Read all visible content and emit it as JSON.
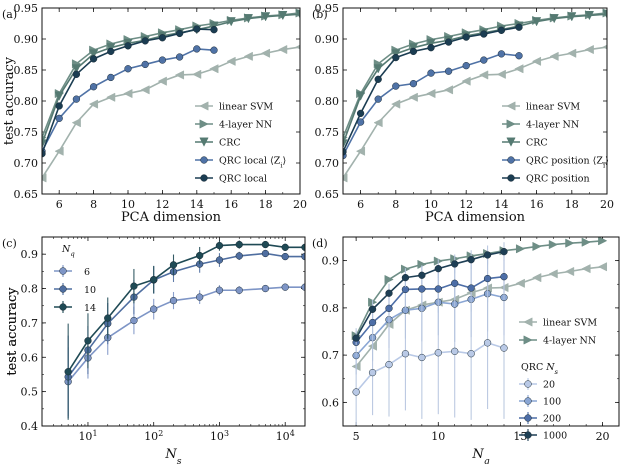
{
  "colors": {
    "svm": "#a2b2ad",
    "nn": "#6e8e86",
    "crc": "#557a72",
    "local": "#4f72a6",
    "qrc": "#1b3d52",
    "nq6": "#7e95c6",
    "nq10": "#4f6ea0",
    "nq14": "#1f4a55",
    "ns20": "#b9c9e6",
    "ns100": "#8aa6d4",
    "ns200": "#4d6ea7",
    "ns1000": "#1e3f55",
    "errbar": "#b5c4de"
  },
  "chart_data": [
    {
      "panel": "(a)",
      "type": "line",
      "xlabel": "PCA dimension",
      "ylabel": "test accuracy",
      "xlim": [
        5,
        20
      ],
      "ylim": [
        0.65,
        0.95
      ],
      "xticks": [
        6,
        8,
        10,
        12,
        14,
        16,
        18,
        20
      ],
      "yticks": [
        0.65,
        0.7,
        0.75,
        0.8,
        0.85,
        0.9,
        0.95
      ],
      "legend_pos": "bottom-right",
      "series": [
        {
          "name": "linear SVM",
          "key": "svm",
          "marker": "tri-left",
          "x": [
            5,
            6,
            7,
            8,
            9,
            10,
            11,
            12,
            13,
            14,
            15,
            16,
            17,
            18,
            19,
            20
          ],
          "y": [
            0.676,
            0.719,
            0.765,
            0.795,
            0.806,
            0.812,
            0.818,
            0.832,
            0.842,
            0.843,
            0.852,
            0.864,
            0.872,
            0.877,
            0.883,
            0.887
          ]
        },
        {
          "name": "4-layer NN",
          "key": "nn",
          "marker": "tri-right",
          "x": [
            5,
            6,
            7,
            8,
            9,
            10,
            11,
            12,
            13,
            14,
            15,
            16,
            17,
            18,
            19,
            20
          ],
          "y": [
            0.741,
            0.812,
            0.86,
            0.882,
            0.892,
            0.899,
            0.904,
            0.91,
            0.915,
            0.921,
            0.925,
            0.93,
            0.934,
            0.937,
            0.939,
            0.942
          ]
        },
        {
          "name": "CRC",
          "key": "crc",
          "marker": "tri-down",
          "x": [
            5,
            6,
            7,
            8,
            9,
            10,
            11,
            12,
            13,
            14,
            15,
            16,
            17,
            18,
            19,
            20
          ],
          "y": [
            0.731,
            0.808,
            0.852,
            0.876,
            0.886,
            0.893,
            0.898,
            0.905,
            0.91,
            0.915,
            0.921,
            0.928,
            0.933,
            0.936,
            0.938,
            0.94
          ]
        },
        {
          "name": "QRC local ⟨Z_i⟩",
          "key": "local",
          "marker": "circle",
          "x": [
            5,
            6,
            7,
            8,
            9,
            10,
            11,
            12,
            13,
            14,
            15
          ],
          "y": [
            0.719,
            0.772,
            0.803,
            0.823,
            0.838,
            0.852,
            0.859,
            0.866,
            0.871,
            0.884,
            0.882
          ]
        },
        {
          "name": "QRC local",
          "key": "qrc",
          "marker": "circle",
          "x": [
            5,
            6,
            7,
            8,
            9,
            10,
            11,
            12,
            13,
            14,
            15
          ],
          "y": [
            0.715,
            0.792,
            0.843,
            0.868,
            0.88,
            0.889,
            0.897,
            0.902,
            0.909,
            0.916,
            0.915
          ]
        }
      ]
    },
    {
      "panel": "(b)",
      "type": "line",
      "xlabel": "PCA dimension",
      "ylabel": "",
      "xlim": [
        5,
        20
      ],
      "ylim": [
        0.65,
        0.95
      ],
      "xticks": [
        6,
        8,
        10,
        12,
        14,
        16,
        18,
        20
      ],
      "yticks": [
        0.65,
        0.7,
        0.75,
        0.8,
        0.85,
        0.9,
        0.95
      ],
      "legend_pos": "bottom-right",
      "series": [
        {
          "name": "linear SVM",
          "key": "svm",
          "marker": "tri-left",
          "x": [
            5,
            6,
            7,
            8,
            9,
            10,
            11,
            12,
            13,
            14,
            15,
            16,
            17,
            18,
            19,
            20
          ],
          "y": [
            0.676,
            0.719,
            0.765,
            0.795,
            0.806,
            0.812,
            0.818,
            0.832,
            0.842,
            0.843,
            0.852,
            0.864,
            0.872,
            0.877,
            0.883,
            0.887
          ]
        },
        {
          "name": "4-layer NN",
          "key": "nn",
          "marker": "tri-right",
          "x": [
            5,
            6,
            7,
            8,
            9,
            10,
            11,
            12,
            13,
            14,
            15,
            16,
            17,
            18,
            19,
            20
          ],
          "y": [
            0.741,
            0.812,
            0.86,
            0.882,
            0.892,
            0.899,
            0.904,
            0.91,
            0.915,
            0.921,
            0.925,
            0.93,
            0.934,
            0.937,
            0.939,
            0.942
          ]
        },
        {
          "name": "CRC",
          "key": "crc",
          "marker": "tri-down",
          "x": [
            5,
            6,
            7,
            8,
            9,
            10,
            11,
            12,
            13,
            14,
            15,
            16,
            17,
            18,
            19,
            20
          ],
          "y": [
            0.731,
            0.808,
            0.852,
            0.876,
            0.886,
            0.893,
            0.898,
            0.905,
            0.91,
            0.915,
            0.921,
            0.928,
            0.933,
            0.936,
            0.938,
            0.94
          ]
        },
        {
          "name": "QRC position ⟨Z_i⟩",
          "key": "local",
          "marker": "circle",
          "x": [
            5,
            6,
            7,
            8,
            9,
            10,
            11,
            12,
            13,
            14,
            15
          ],
          "y": [
            0.712,
            0.766,
            0.803,
            0.824,
            0.828,
            0.845,
            0.848,
            0.857,
            0.866,
            0.876,
            0.873
          ]
        },
        {
          "name": "QRC position",
          "key": "qrc",
          "marker": "circle",
          "x": [
            5,
            6,
            7,
            8,
            9,
            10,
            11,
            12,
            13,
            14,
            15
          ],
          "y": [
            0.718,
            0.78,
            0.835,
            0.87,
            0.88,
            0.886,
            0.895,
            0.903,
            0.908,
            0.914,
            0.919
          ]
        }
      ]
    },
    {
      "panel": "(c)",
      "type": "line",
      "xscale": "log",
      "xlabel": "N_s",
      "ylabel": "test accuracy",
      "xlim": [
        2,
        20000
      ],
      "ylim": [
        0.4,
        0.95
      ],
      "xticks": [
        10,
        100,
        1000,
        10000
      ],
      "xticklabels": [
        "10^1",
        "10^2",
        "10^3",
        "10^4"
      ],
      "yticks": [
        0.4,
        0.5,
        0.6,
        0.7,
        0.8,
        0.9
      ],
      "legend_title": "N_q",
      "legend_pos": "top-left",
      "series": [
        {
          "name": "6",
          "key": "nq6",
          "marker": "circle",
          "x": [
            5,
            10,
            20,
            50,
            100,
            200,
            500,
            1000,
            2000,
            5000,
            10000,
            20000
          ],
          "y": [
            0.529,
            0.598,
            0.657,
            0.707,
            0.74,
            0.765,
            0.775,
            0.795,
            0.795,
            0.8,
            0.804,
            0.804
          ],
          "err": [
            0.1,
            0.06,
            0.05,
            0.04,
            0.03,
            0.025,
            0.02,
            0.015,
            0.012,
            0.01,
            0.01,
            0
          ]
        },
        {
          "name": "10",
          "key": "nq10",
          "marker": "circle",
          "x": [
            5,
            10,
            20,
            50,
            100,
            200,
            500,
            1000,
            2000,
            5000,
            10000,
            20000
          ],
          "y": [
            0.543,
            0.621,
            0.698,
            0.775,
            0.825,
            0.849,
            0.871,
            0.883,
            0.895,
            0.902,
            0.893,
            0.893
          ],
          "err": [
            0.12,
            0.07,
            0.06,
            0.05,
            0.04,
            0.03,
            0.025,
            0.02,
            0.012,
            0.01,
            0.01,
            0
          ]
        },
        {
          "name": "14",
          "key": "nq14",
          "marker": "circle",
          "x": [
            5,
            10,
            20,
            50,
            100,
            200,
            500,
            1000,
            2000,
            5000,
            10000,
            20000
          ],
          "y": [
            0.558,
            0.648,
            0.714,
            0.807,
            0.826,
            0.869,
            0.896,
            0.925,
            0.928,
            0.928,
            0.92,
            0.92
          ],
          "err": [
            0.14,
            0.08,
            0.06,
            0.05,
            0.04,
            0.03,
            0.025,
            0.015,
            0.012,
            0.01,
            0.01,
            0
          ]
        }
      ]
    },
    {
      "panel": "(d)",
      "type": "line",
      "xlabel": "N_q",
      "ylabel": "test accuracy",
      "xlim": [
        4.2,
        21
      ],
      "ylim": [
        0.55,
        0.95
      ],
      "xticks": [
        5,
        10,
        15,
        20
      ],
      "yticks": [
        0.6,
        0.7,
        0.8,
        0.9
      ],
      "legend_pos": "right",
      "legend_title": "QRC N_s",
      "series": [
        {
          "name": "linear SVM",
          "key": "svm",
          "marker": "tri-left",
          "x": [
            5,
            6,
            7,
            8,
            9,
            10,
            11,
            12,
            13,
            14,
            15,
            16,
            17,
            18,
            19,
            20
          ],
          "y": [
            0.676,
            0.719,
            0.765,
            0.795,
            0.806,
            0.812,
            0.818,
            0.832,
            0.842,
            0.843,
            0.852,
            0.864,
            0.872,
            0.877,
            0.883,
            0.887
          ]
        },
        {
          "name": "4-layer NN",
          "key": "nn",
          "marker": "tri-right",
          "x": [
            5,
            6,
            7,
            8,
            9,
            10,
            11,
            12,
            13,
            14,
            15,
            16,
            17,
            18,
            19,
            20
          ],
          "y": [
            0.741,
            0.812,
            0.86,
            0.882,
            0.892,
            0.899,
            0.904,
            0.91,
            0.915,
            0.921,
            0.925,
            0.93,
            0.934,
            0.937,
            0.939,
            0.942
          ]
        },
        {
          "name": "20",
          "key": "ns20",
          "marker": "circle",
          "x": [
            5,
            6,
            7,
            8,
            9,
            10,
            11,
            12,
            13,
            14
          ],
          "y": [
            0.622,
            0.663,
            0.68,
            0.703,
            0.695,
            0.705,
            0.708,
            0.703,
            0.726,
            0.715
          ],
          "err": [
            0.07,
            0.09,
            0.11,
            0.12,
            0.13,
            0.13,
            0.14,
            0.14,
            0.14,
            0.15
          ]
        },
        {
          "name": "100",
          "key": "ns100",
          "marker": "circle",
          "x": [
            5,
            6,
            7,
            8,
            9,
            10,
            11,
            12,
            13,
            14
          ],
          "y": [
            0.699,
            0.737,
            0.775,
            0.795,
            0.799,
            0.812,
            0.808,
            0.818,
            0.83,
            0.822
          ],
          "err": [
            0.04,
            0.05,
            0.06,
            0.06,
            0.07,
            0.07,
            0.08,
            0.08,
            0.08,
            0.08
          ]
        },
        {
          "name": "200",
          "key": "ns200",
          "marker": "circle",
          "x": [
            5,
            6,
            7,
            8,
            9,
            10,
            11,
            12,
            13,
            14
          ],
          "y": [
            0.727,
            0.769,
            0.799,
            0.839,
            0.84,
            0.84,
            0.852,
            0.842,
            0.862,
            0.866
          ],
          "err": [
            0.03,
            0.04,
            0.04,
            0.04,
            0.05,
            0.05,
            0.05,
            0.05,
            0.05,
            0.05
          ]
        },
        {
          "name": "1000",
          "key": "ns1000",
          "marker": "circle",
          "x": [
            5,
            6,
            7,
            8,
            9,
            10,
            11,
            12,
            13,
            14
          ],
          "y": [
            0.736,
            0.797,
            0.831,
            0.864,
            0.869,
            0.883,
            0.893,
            0.902,
            0.912,
            0.919
          ],
          "err": [
            0.015,
            0.02,
            0.02,
            0.02,
            0.02,
            0.02,
            0.02,
            0.02,
            0.02,
            0.02
          ]
        }
      ]
    }
  ]
}
